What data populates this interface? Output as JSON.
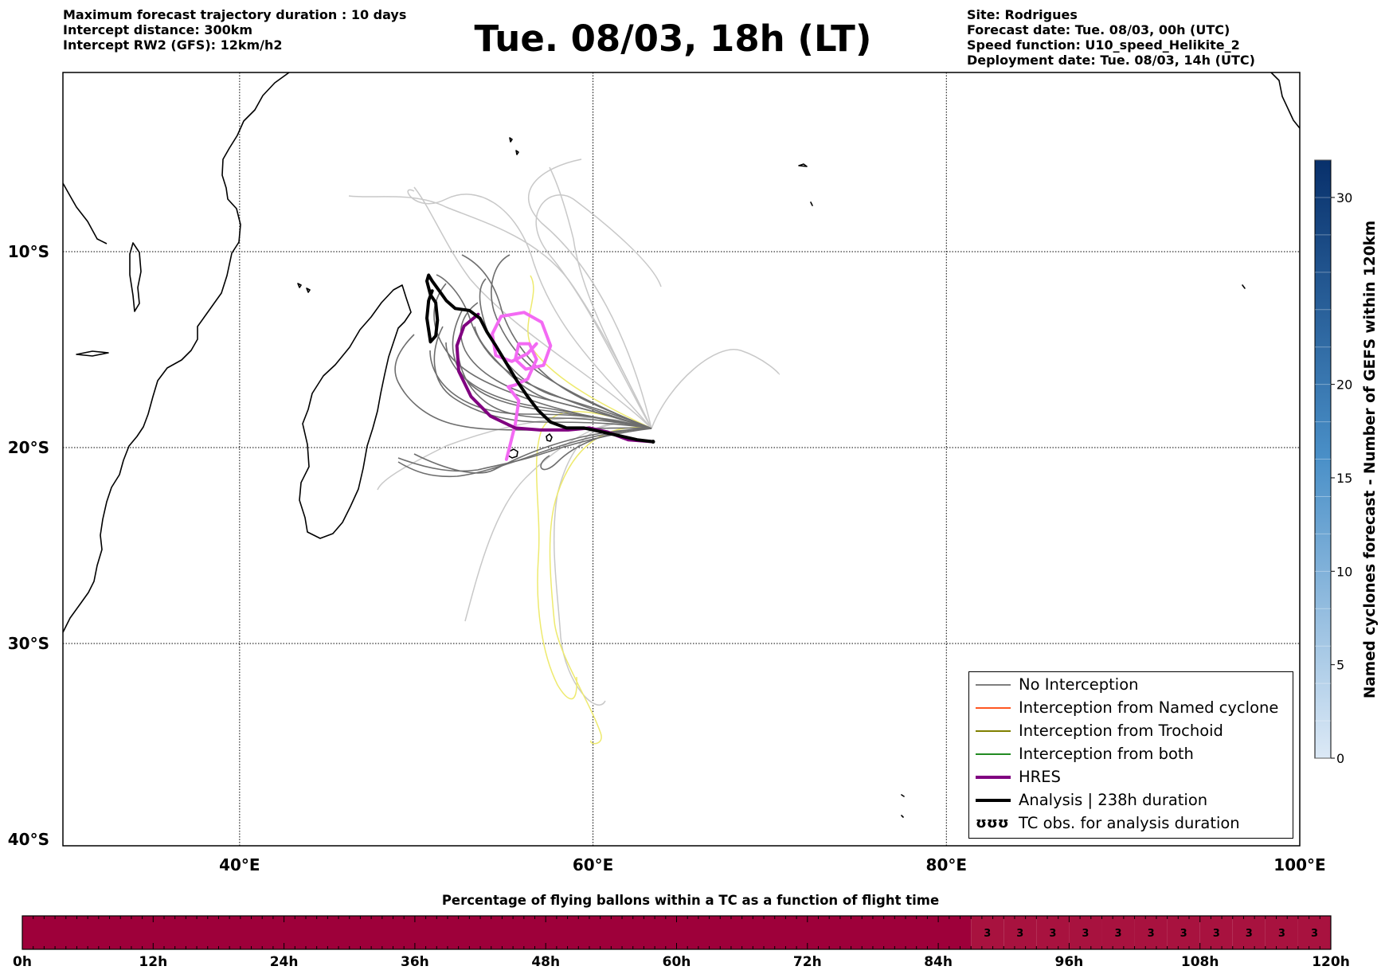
{
  "header": {
    "left_lines": [
      "Maximum forecast trajectory duration : 10 days",
      "Intercept distance: 300km",
      "Intercept RW2 (GFS):  12km/h2"
    ],
    "title": "Tue. 08/03, 18h (LT)",
    "right_lines": [
      "Site: Rodrigues",
      "Forecast date: Tue. 08/03, 00h (UTC)",
      "Speed function: U10_speed_Helikite_2",
      "Deployment date: Tue. 08/03, 14h (UTC)"
    ]
  },
  "map": {
    "lon_range": [
      30,
      100
    ],
    "lat_range": [
      -40,
      -4
    ],
    "lon_ticks": [
      {
        "value": 40,
        "label": "40°E"
      },
      {
        "value": 60,
        "label": "60°E"
      },
      {
        "value": 80,
        "label": "80°E"
      },
      {
        "value": 100,
        "label": "100°E"
      }
    ],
    "lat_ticks": [
      {
        "value": -10,
        "label": "10°S"
      },
      {
        "value": -20,
        "label": "20°S"
      },
      {
        "value": -30,
        "label": "30°S"
      },
      {
        "value": -40,
        "label": "40°S"
      }
    ],
    "grid": "dotted",
    "launch_site": {
      "name": "Rodrigues",
      "lon": 63.4,
      "lat": -19.7
    },
    "analysis_track": [
      [
        63.4,
        -19.7
      ],
      [
        62.5,
        -19.6
      ],
      [
        61.5,
        -19.4
      ],
      [
        60.5,
        -19.2
      ],
      [
        59.5,
        -19.0
      ],
      [
        58.5,
        -19.0
      ],
      [
        57.6,
        -18.7
      ],
      [
        56.9,
        -18.1
      ],
      [
        56.3,
        -17.4
      ],
      [
        55.7,
        -16.6
      ],
      [
        55.1,
        -15.7
      ],
      [
        54.5,
        -14.8
      ],
      [
        54.0,
        -14.1
      ],
      [
        53.6,
        -13.4
      ],
      [
        53.0,
        -13.0
      ],
      [
        52.2,
        -12.9
      ],
      [
        51.7,
        -12.5
      ],
      [
        51.3,
        -12.0
      ],
      [
        50.9,
        -11.5
      ],
      [
        50.7,
        -11.2
      ],
      [
        50.6,
        -11.5
      ],
      [
        50.8,
        -12.2
      ],
      [
        51.1,
        -12.6
      ],
      [
        51.2,
        -13.5
      ],
      [
        51.1,
        -14.3
      ],
      [
        50.8,
        -14.6
      ],
      [
        50.6,
        -13.4
      ],
      [
        50.7,
        -12.5
      ],
      [
        50.9,
        -12.0
      ]
    ],
    "hres_track": [
      [
        63.4,
        -19.7
      ],
      [
        62.0,
        -19.6
      ],
      [
        60.8,
        -19.2
      ],
      [
        59.8,
        -19.0
      ],
      [
        58.6,
        -19.1
      ],
      [
        57.0,
        -19.1
      ],
      [
        55.6,
        -19.0
      ],
      [
        54.2,
        -18.4
      ],
      [
        53.1,
        -17.4
      ],
      [
        52.4,
        -16.1
      ],
      [
        52.3,
        -14.8
      ],
      [
        52.7,
        -13.8
      ],
      [
        53.5,
        -13.2
      ]
    ],
    "tc_obs_track": [
      [
        55.1,
        -20.6
      ],
      [
        55.3,
        -19.9
      ],
      [
        55.6,
        -18.8
      ],
      [
        55.8,
        -17.6
      ],
      [
        55.2,
        -16.9
      ],
      [
        55.6,
        -16.8
      ],
      [
        56.3,
        -16.5
      ],
      [
        56.8,
        -15.5
      ],
      [
        56.4,
        -14.7
      ],
      [
        55.8,
        -14.7
      ],
      [
        55.6,
        -15.5
      ],
      [
        56.2,
        -16.0
      ],
      [
        57.2,
        -15.8
      ],
      [
        57.6,
        -14.8
      ],
      [
        57.1,
        -13.6
      ],
      [
        56.1,
        -13.1
      ],
      [
        54.8,
        -13.3
      ],
      [
        54.3,
        -14.2
      ],
      [
        54.5,
        -15.3
      ],
      [
        55.4,
        -15.6
      ],
      [
        56.3,
        -15.2
      ],
      [
        56.8,
        -14.7
      ]
    ],
    "legend": [
      {
        "label": "No Interception",
        "color": "#7f7f7f",
        "width": 1.5
      },
      {
        "label": "Interception from Named cyclone",
        "color": "#ff5722",
        "width": 1.5
      },
      {
        "label": "Interception from Trochoid",
        "color": "#808000",
        "width": 1.5
      },
      {
        "label": "Interception from both",
        "color": "#228b22",
        "width": 1.5
      },
      {
        "label": "HRES",
        "color": "#800080",
        "width": 4
      },
      {
        "label": "Analysis | 238h duration",
        "color": "#000000",
        "width": 4
      },
      {
        "label": "TC obs. for analysis duration",
        "color": "#000000",
        "symbol": "ʊʊʊ"
      }
    ]
  },
  "right_colorbar": {
    "label": "Named cyclones forecast - Number of GEFS within 120km",
    "range": [
      0,
      32
    ],
    "ticks": [
      "0",
      "5",
      "10",
      "15",
      "20",
      "30"
    ],
    "tick_values": [
      0,
      5,
      10,
      15,
      20,
      30
    ],
    "color_low": "#dce9f6",
    "color_high": "#08306b"
  },
  "bottom_timebar": {
    "title": "Percentage of flying ballons within a TC as a function of flight time",
    "range_hours": [
      0,
      120
    ],
    "ticks": [
      "0h",
      "12h",
      "24h",
      "36h",
      "48h",
      "60h",
      "72h",
      "84h",
      "96h",
      "108h",
      "120h"
    ],
    "tick_values": [
      0,
      12,
      24,
      36,
      48,
      60,
      72,
      84,
      96,
      108,
      120
    ],
    "segments": [
      {
        "start": 0,
        "end": 87,
        "color": "#9e003a",
        "label": ""
      },
      {
        "start": 87,
        "end": 90,
        "color": "#a8123f",
        "label": "3"
      },
      {
        "start": 90,
        "end": 93,
        "color": "#a8123f",
        "label": "3"
      },
      {
        "start": 93,
        "end": 96,
        "color": "#a8123f",
        "label": "3"
      },
      {
        "start": 96,
        "end": 99,
        "color": "#a8123f",
        "label": "3"
      },
      {
        "start": 99,
        "end": 102,
        "color": "#a8123f",
        "label": "3"
      },
      {
        "start": 102,
        "end": 105,
        "color": "#a8123f",
        "label": "3"
      },
      {
        "start": 105,
        "end": 108,
        "color": "#a8123f",
        "label": "3"
      },
      {
        "start": 108,
        "end": 111,
        "color": "#a8123f",
        "label": "3"
      },
      {
        "start": 111,
        "end": 114,
        "color": "#a8123f",
        "label": "3"
      },
      {
        "start": 114,
        "end": 117,
        "color": "#a8123f",
        "label": "3"
      },
      {
        "start": 117,
        "end": 120,
        "color": "#a8123f",
        "label": "3"
      }
    ]
  }
}
